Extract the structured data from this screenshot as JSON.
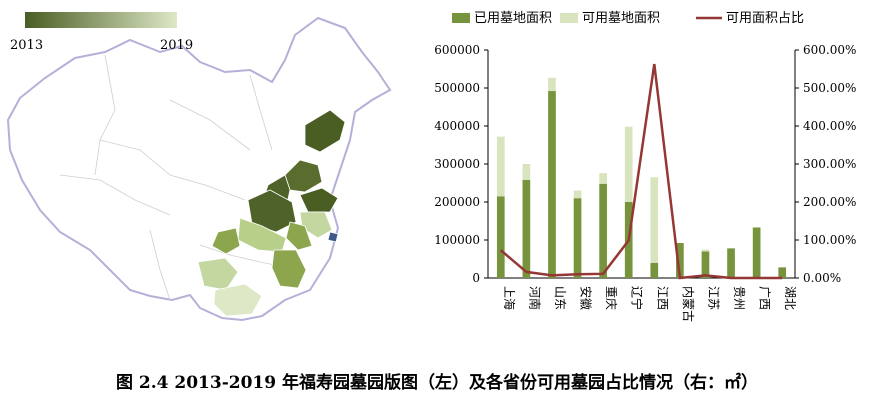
{
  "map": {
    "legend": {
      "min_label": "2013",
      "max_label": "2019",
      "color_dark": "#4a5d23",
      "color_light": "#dde8c6"
    }
  },
  "caption": "图 2.4    2013-2019 年福寿园墓园版图（左）及各省份可用墓园占比情况（右：㎡）",
  "chart_data": {
    "type": "bar",
    "categories": [
      "上海",
      "河南",
      "山东",
      "安徽",
      "重庆",
      "辽宁",
      "江西",
      "内蒙古",
      "江苏",
      "贵州",
      "广西",
      "湖北"
    ],
    "series": [
      {
        "name": "已用墓地面积",
        "type": "bar",
        "axis": "left",
        "color": "#77933c",
        "values": [
          215000,
          258000,
          492000,
          210000,
          248000,
          200000,
          40000,
          92000,
          70000,
          78000,
          133000,
          28000
        ]
      },
      {
        "name": "可用墓地面积",
        "type": "bar",
        "axis": "left",
        "color": "#d7e4bd",
        "values": [
          157000,
          42000,
          35000,
          20000,
          28000,
          198000,
          225000,
          0,
          5000,
          0,
          0,
          0
        ]
      },
      {
        "name": "可用面积占比",
        "type": "line",
        "axis": "right",
        "color": "#953735",
        "values": [
          73,
          16,
          7,
          10,
          11,
          99,
          563,
          0,
          7,
          0,
          0,
          0
        ]
      }
    ],
    "ylim": [
      0,
      600000
    ],
    "yticks": [
      "0",
      "100000",
      "200000",
      "300000",
      "400000",
      "500000",
      "600000"
    ],
    "y2lim": [
      0,
      600
    ],
    "y2ticks": [
      "0.00%",
      "100.00%",
      "200.00%",
      "300.00%",
      "400.00%",
      "500.00%",
      "600.00%"
    ],
    "legend_position": "top"
  }
}
